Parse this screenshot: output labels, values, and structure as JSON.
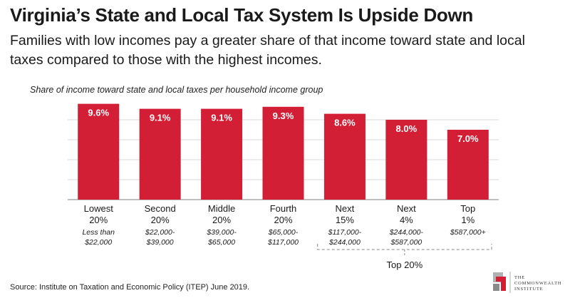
{
  "header": {
    "title": "Virginia’s State and Local Tax System Is Upside Down",
    "subtitle": "Families with low incomes pay a greater share of that income toward state and local taxes compared to those with the highest incomes."
  },
  "chart_data": {
    "type": "bar",
    "title": "Share of income toward state and local taxes per household income group",
    "categories": [
      {
        "group": [
          "Lowest",
          "20%"
        ],
        "range": [
          "Less than",
          "$22,000"
        ]
      },
      {
        "group": [
          "Second",
          "20%"
        ],
        "range": [
          "$22,000-",
          "$39,000"
        ]
      },
      {
        "group": [
          "Middle",
          "20%"
        ],
        "range": [
          "$39,000-",
          "$65,000"
        ]
      },
      {
        "group": [
          "Fourth",
          "20%"
        ],
        "range": [
          "$65,000-",
          "$117,000"
        ]
      },
      {
        "group": [
          "Next",
          "15%"
        ],
        "range": [
          "$117,000-",
          "$244,000"
        ]
      },
      {
        "group": [
          "Next",
          "4%"
        ],
        "range": [
          "$244,000-",
          "$587,000"
        ]
      },
      {
        "group": [
          "Top",
          "1%"
        ],
        "range": [
          "$587,000+"
        ]
      }
    ],
    "values": [
      9.6,
      9.1,
      9.1,
      9.3,
      8.6,
      8.0,
      7.0
    ],
    "value_labels": [
      "9.6%",
      "9.1%",
      "9.1%",
      "9.3%",
      "8.6%",
      "8.0%",
      "7.0%"
    ],
    "ylim": [
      0,
      10
    ],
    "grid": true,
    "bar_color": "#d21f35",
    "bracket_label": "Top 20%",
    "bracket_spans": [
      4,
      6
    ]
  },
  "footer": {
    "source": "Source: Institute on Taxation and Economic Policy (ITEP) June 2019.",
    "logo_lines": [
      "The",
      "Commonwealth",
      "Institute"
    ]
  },
  "colors": {
    "logo_red": "#d21f35",
    "logo_gray": "#b0b0b0"
  }
}
